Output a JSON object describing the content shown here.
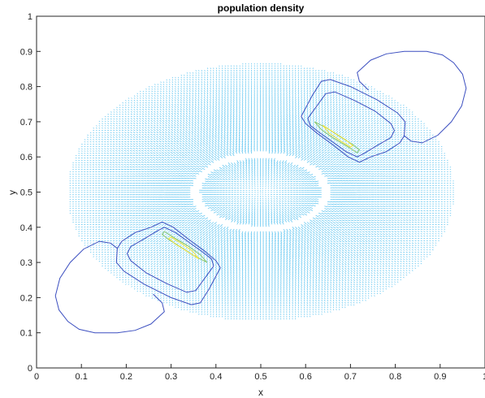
{
  "chart_data": {
    "type": "quiver-contour",
    "title": "population density",
    "xlabel": "x",
    "ylabel": "y",
    "xlim": [
      0,
      1
    ],
    "ylim": [
      0,
      1
    ],
    "xticks": [
      "0",
      "0.1",
      "0.2",
      "0.3",
      "0.4",
      "0.5",
      "0.6",
      "0.7",
      "0.8",
      "0.9",
      "1"
    ],
    "yticks": [
      "0",
      "0.1",
      "0.2",
      "0.3",
      "0.4",
      "0.5",
      "0.6",
      "0.7",
      "0.8",
      "0.9",
      "1"
    ],
    "grid": false,
    "vector_field": {
      "center": [
        0.5,
        0.5
      ],
      "outer_radius": [
        0.43,
        0.365
      ],
      "void_radius": [
        0.145,
        0.105
      ],
      "color": "#4dbeee"
    },
    "contours": [
      {
        "name": "upper-right outer",
        "color": "#3c4fc0",
        "points": [
          [
            0.59,
            0.715
          ],
          [
            0.615,
            0.775
          ],
          [
            0.635,
            0.815
          ],
          [
            0.655,
            0.82
          ],
          [
            0.7,
            0.8
          ],
          [
            0.76,
            0.762
          ],
          [
            0.805,
            0.725
          ],
          [
            0.822,
            0.7
          ],
          [
            0.82,
            0.66
          ],
          [
            0.81,
            0.64
          ],
          [
            0.78,
            0.615
          ],
          [
            0.745,
            0.6
          ],
          [
            0.72,
            0.585
          ],
          [
            0.695,
            0.6
          ],
          [
            0.66,
            0.635
          ],
          [
            0.625,
            0.668
          ],
          [
            0.6,
            0.695
          ],
          [
            0.59,
            0.715
          ]
        ]
      },
      {
        "name": "upper-right lobe",
        "color": "#3c4fc0",
        "points": [
          [
            0.74,
            0.79
          ],
          [
            0.72,
            0.815
          ],
          [
            0.715,
            0.84
          ],
          [
            0.745,
            0.875
          ],
          [
            0.78,
            0.893
          ],
          [
            0.82,
            0.9
          ],
          [
            0.87,
            0.9
          ],
          [
            0.905,
            0.89
          ],
          [
            0.93,
            0.868
          ],
          [
            0.95,
            0.835
          ],
          [
            0.958,
            0.795
          ],
          [
            0.948,
            0.745
          ],
          [
            0.925,
            0.7
          ],
          [
            0.895,
            0.662
          ],
          [
            0.86,
            0.64
          ],
          [
            0.835,
            0.645
          ],
          [
            0.82,
            0.66
          ]
        ]
      },
      {
        "name": "upper-right inner",
        "color": "#3c4fc0",
        "points": [
          [
            0.605,
            0.71
          ],
          [
            0.625,
            0.745
          ],
          [
            0.645,
            0.78
          ],
          [
            0.665,
            0.785
          ],
          [
            0.71,
            0.76
          ],
          [
            0.755,
            0.73
          ],
          [
            0.79,
            0.695
          ],
          [
            0.798,
            0.675
          ],
          [
            0.79,
            0.655
          ],
          [
            0.76,
            0.633
          ],
          [
            0.73,
            0.61
          ],
          [
            0.715,
            0.6
          ],
          [
            0.69,
            0.615
          ],
          [
            0.66,
            0.643
          ],
          [
            0.63,
            0.67
          ],
          [
            0.61,
            0.69
          ],
          [
            0.605,
            0.71
          ]
        ]
      },
      {
        "name": "upper-right core",
        "color": "#8ac66b",
        "points": [
          [
            0.62,
            0.7
          ],
          [
            0.65,
            0.68
          ],
          [
            0.68,
            0.655
          ],
          [
            0.705,
            0.635
          ],
          [
            0.72,
            0.62
          ],
          [
            0.715,
            0.612
          ],
          [
            0.69,
            0.632
          ],
          [
            0.66,
            0.655
          ],
          [
            0.635,
            0.678
          ],
          [
            0.62,
            0.7
          ]
        ]
      },
      {
        "name": "upper-right peak",
        "color": "#f2e33a",
        "points": [
          [
            0.638,
            0.69
          ],
          [
            0.665,
            0.668
          ],
          [
            0.69,
            0.648
          ],
          [
            0.705,
            0.632
          ],
          [
            0.7,
            0.628
          ],
          [
            0.678,
            0.645
          ],
          [
            0.652,
            0.668
          ],
          [
            0.638,
            0.69
          ]
        ]
      },
      {
        "name": "lower-left outer",
        "color": "#3c4fc0",
        "points": [
          [
            0.41,
            0.285
          ],
          [
            0.385,
            0.225
          ],
          [
            0.365,
            0.185
          ],
          [
            0.345,
            0.18
          ],
          [
            0.3,
            0.2
          ],
          [
            0.24,
            0.238
          ],
          [
            0.195,
            0.275
          ],
          [
            0.178,
            0.3
          ],
          [
            0.18,
            0.34
          ],
          [
            0.19,
            0.36
          ],
          [
            0.22,
            0.385
          ],
          [
            0.255,
            0.4
          ],
          [
            0.28,
            0.415
          ],
          [
            0.305,
            0.4
          ],
          [
            0.34,
            0.365
          ],
          [
            0.375,
            0.332
          ],
          [
            0.4,
            0.305
          ],
          [
            0.41,
            0.285
          ]
        ]
      },
      {
        "name": "lower-left lobe",
        "color": "#3c4fc0",
        "points": [
          [
            0.26,
            0.21
          ],
          [
            0.28,
            0.185
          ],
          [
            0.285,
            0.16
          ],
          [
            0.255,
            0.125
          ],
          [
            0.22,
            0.107
          ],
          [
            0.18,
            0.1
          ],
          [
            0.13,
            0.1
          ],
          [
            0.095,
            0.11
          ],
          [
            0.07,
            0.132
          ],
          [
            0.05,
            0.165
          ],
          [
            0.042,
            0.205
          ],
          [
            0.052,
            0.255
          ],
          [
            0.075,
            0.3
          ],
          [
            0.105,
            0.338
          ],
          [
            0.14,
            0.36
          ],
          [
            0.165,
            0.355
          ],
          [
            0.18,
            0.34
          ]
        ]
      },
      {
        "name": "lower-left inner",
        "color": "#3c4fc0",
        "points": [
          [
            0.395,
            0.29
          ],
          [
            0.375,
            0.255
          ],
          [
            0.355,
            0.22
          ],
          [
            0.335,
            0.215
          ],
          [
            0.29,
            0.24
          ],
          [
            0.245,
            0.27
          ],
          [
            0.21,
            0.305
          ],
          [
            0.202,
            0.325
          ],
          [
            0.21,
            0.345
          ],
          [
            0.24,
            0.367
          ],
          [
            0.27,
            0.39
          ],
          [
            0.285,
            0.4
          ],
          [
            0.31,
            0.385
          ],
          [
            0.34,
            0.357
          ],
          [
            0.37,
            0.33
          ],
          [
            0.39,
            0.31
          ],
          [
            0.395,
            0.29
          ]
        ]
      },
      {
        "name": "lower-left core",
        "color": "#8ac66b",
        "points": [
          [
            0.38,
            0.3
          ],
          [
            0.35,
            0.32
          ],
          [
            0.32,
            0.345
          ],
          [
            0.295,
            0.365
          ],
          [
            0.28,
            0.38
          ],
          [
            0.285,
            0.388
          ],
          [
            0.31,
            0.368
          ],
          [
            0.34,
            0.345
          ],
          [
            0.365,
            0.322
          ],
          [
            0.38,
            0.3
          ]
        ]
      },
      {
        "name": "lower-left peak",
        "color": "#f2e33a",
        "points": [
          [
            0.362,
            0.31
          ],
          [
            0.335,
            0.332
          ],
          [
            0.31,
            0.352
          ],
          [
            0.295,
            0.368
          ],
          [
            0.3,
            0.372
          ],
          [
            0.322,
            0.355
          ],
          [
            0.348,
            0.332
          ],
          [
            0.362,
            0.31
          ]
        ]
      }
    ]
  }
}
